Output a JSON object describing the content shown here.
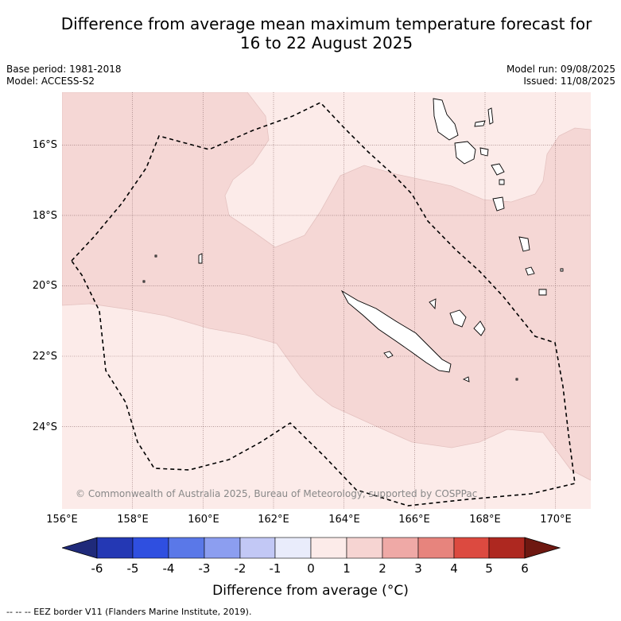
{
  "title_line1": "Difference from average mean maximum temperature forecast for",
  "title_line2": "16 to 22 August 2025",
  "meta": {
    "base_period": "Base period: 1981-2018",
    "model": "Model: ACCESS-S2",
    "model_run": "Model run: 09/08/2025",
    "issued": "Issued: 11/08/2025"
  },
  "map": {
    "lon_range": [
      156,
      171
    ],
    "lat_range": [
      -26.2,
      -14.5
    ],
    "x_ticks": [
      "156°E",
      "158°E",
      "160°E",
      "162°E",
      "164°E",
      "166°E",
      "168°E",
      "170°E"
    ],
    "y_ticks": [
      "16°S",
      "18°S",
      "20°S",
      "22°S",
      "24°S"
    ],
    "credit": "© Commonwealth of Australia 2025, Bureau of Meteorology, supported by COSPPac",
    "colors": {
      "zero_to_one": "#fcebe9",
      "one_to_two": "#f5d7d5",
      "grid": "#8a6a6a",
      "eez": "#000000"
    }
  },
  "colorbar": {
    "ticks": [
      "-6",
      "-5",
      "-4",
      "-3",
      "-2",
      "-1",
      "0",
      "1",
      "2",
      "3",
      "4",
      "5",
      "6"
    ],
    "colors": [
      "#1f2a7a",
      "#2438b4",
      "#2f4fe0",
      "#5a78e8",
      "#8c9ef0",
      "#c2c8f5",
      "#e9ecfb",
      "#fcebe9",
      "#f6d4d2",
      "#efa9a6",
      "#e7847d",
      "#dc4a40",
      "#ae2820",
      "#6e1811"
    ],
    "title": "Difference from average (",
    "unit": "°C",
    "title_end": ")"
  },
  "eez_note": "--  --  -- EEZ border V11 (Flanders Marine Institute, 2019)."
}
